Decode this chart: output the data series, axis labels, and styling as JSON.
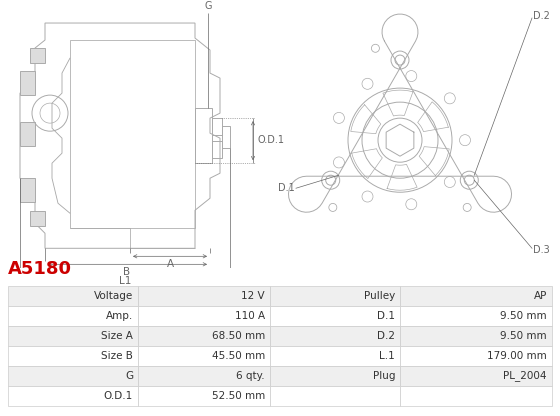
{
  "title": "A5180",
  "title_color": "#cc0000",
  "table_rows": [
    [
      "Voltage",
      "12 V",
      "Pulley",
      "AP"
    ],
    [
      "Amp.",
      "110 A",
      "D.1",
      "9.50 mm"
    ],
    [
      "Size A",
      "68.50 mm",
      "D.2",
      "9.50 mm"
    ],
    [
      "Size B",
      "45.50 mm",
      "L.1",
      "179.00 mm"
    ],
    [
      "G",
      "6 qty.",
      "Plug",
      "PL_2004"
    ],
    [
      "O.D.1",
      "52.50 mm",
      "",
      ""
    ]
  ],
  "bg_color": "#ffffff",
  "row_bg_odd": "#efefef",
  "row_bg_even": "#ffffff",
  "border_color": "#cccccc",
  "font_color": "#333333",
  "line_color": "#aaaaaa",
  "dim_color": "#666666"
}
